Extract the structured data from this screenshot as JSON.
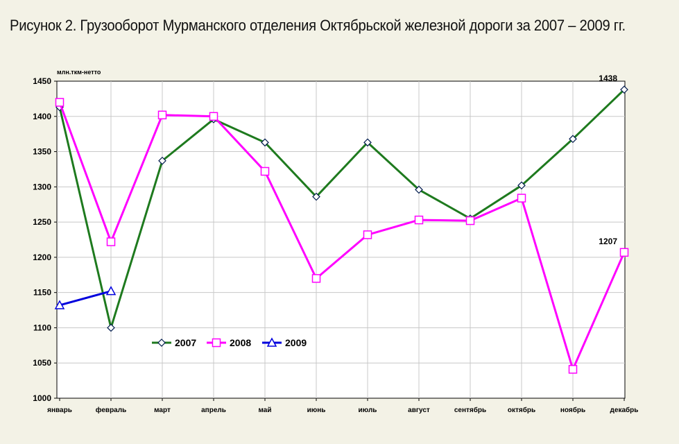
{
  "title": "Рисунок 2. Грузооборот Мурманского отделения Октябрьской железной дороги за 2007 – 2009 гг.",
  "colors": {
    "background": "#f3f2e6",
    "plot_background": "#ffffff",
    "grid": "#c8c8c8"
  },
  "chart_data": {
    "type": "line",
    "ylabel": "млн.ткм-нетто",
    "ylim": [
      1000,
      1450
    ],
    "ytick_step": 50,
    "grid": true,
    "legend_position": "bottom-left",
    "categories": [
      "январь",
      "февраль",
      "март",
      "апрель",
      "май",
      "июнь",
      "июль",
      "август",
      "сентябрь",
      "октябрь",
      "ноябрь",
      "декабрь"
    ],
    "series": [
      {
        "name": "2007",
        "color": "#1e7a1e",
        "marker": "diamond",
        "values": [
          1413,
          1100,
          1337,
          1396,
          1363,
          1286,
          1363,
          1296,
          1255,
          1302,
          1368,
          1438
        ],
        "data_labels": [
          {
            "index": 11,
            "text": "1438"
          }
        ]
      },
      {
        "name": "2008",
        "color": "#ff00ff",
        "marker": "square",
        "values": [
          1420,
          1222,
          1402,
          1400,
          1322,
          1170,
          1232,
          1253,
          1252,
          1284,
          1041,
          1207
        ],
        "data_labels": [
          {
            "index": 11,
            "text": "1207"
          }
        ]
      },
      {
        "name": "2009",
        "color": "#0000dd",
        "marker": "triangle",
        "values": [
          1132,
          1152,
          null,
          null,
          null,
          null,
          null,
          null,
          null,
          null,
          null,
          null
        ],
        "data_labels": []
      }
    ]
  }
}
